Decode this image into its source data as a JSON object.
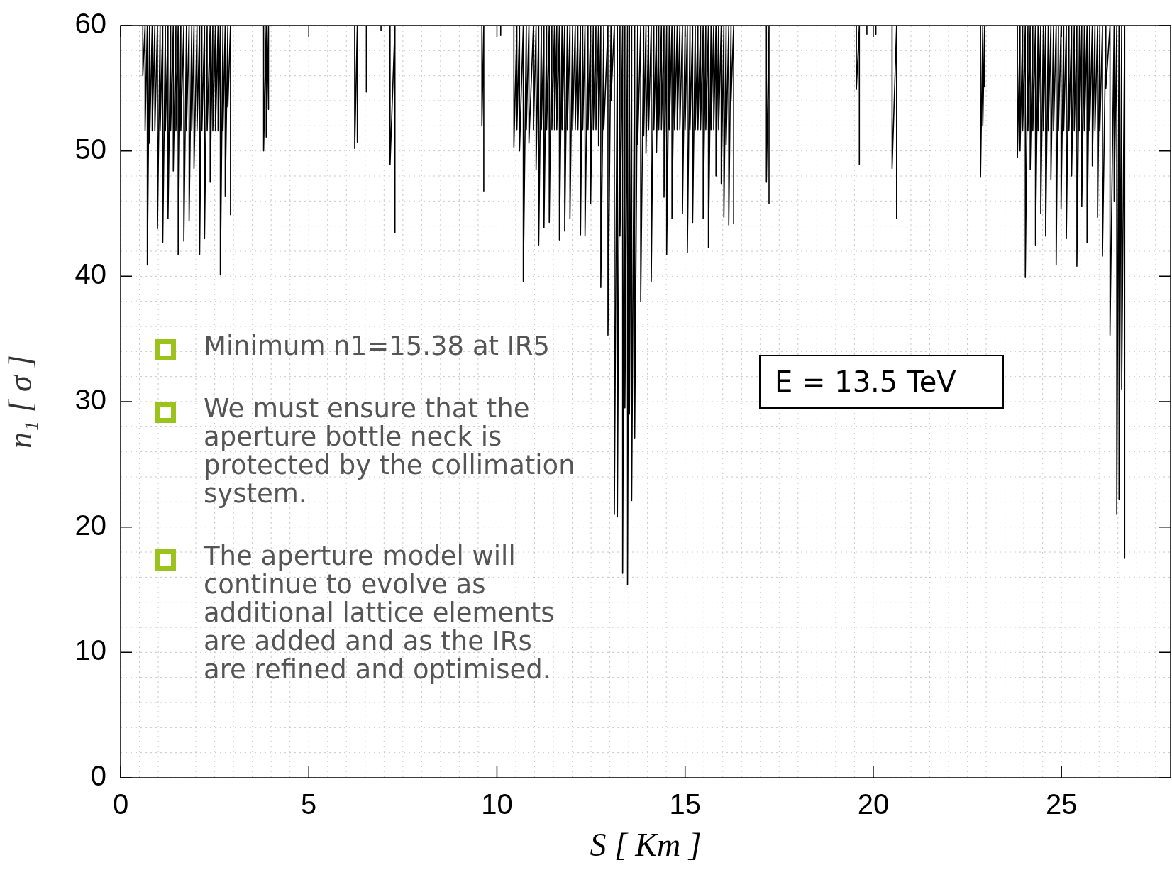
{
  "chart_data": {
    "type": "line",
    "xlabel": "S [ Km ]",
    "ylabel": "n₁ [ σ ]",
    "xlim": [
      0,
      27.9
    ],
    "xticks": [
      0,
      5,
      10,
      15,
      20,
      25
    ],
    "ylim": [
      0,
      60
    ],
    "yticks": [
      0,
      10,
      20,
      30,
      40,
      50,
      60
    ],
    "grid": true,
    "annotations": [
      "Minimum n1=15.38 at IR5",
      "We must ensure that the aperture bottle neck is protected by the collimation system.",
      "The aperture model will continue to evolve as additional lattice elements are added and as the IRs are refined and optimised.",
      "E = 13.5 TeV"
    ],
    "series": [
      {
        "color": "#000000",
        "x": [
          0.59,
          0.59,
          0.65,
          0.65,
          0.71,
          0.71,
          0.77,
          0.77,
          0.84,
          0.84,
          0.91,
          0.91,
          0.98,
          0.98,
          1.05,
          1.05,
          1.12,
          1.12,
          1.19,
          1.19,
          1.26,
          1.26,
          1.33,
          1.33,
          1.4,
          1.4,
          1.47,
          1.47,
          1.53,
          1.53,
          1.6,
          1.6,
          1.68,
          1.68,
          1.75,
          1.75,
          1.82,
          1.82,
          1.89,
          1.89,
          1.95,
          1.95,
          2.03,
          2.03,
          2.1,
          2.1,
          2.16,
          2.16,
          2.23,
          2.23,
          2.3,
          2.3,
          2.38,
          2.38,
          2.45,
          2.45,
          2.52,
          2.52,
          2.59,
          2.59,
          2.65,
          2.65,
          2.72,
          2.72,
          2.78,
          2.78,
          2.85,
          2.85,
          2.92,
          2.92,
          2.92,
          3.8,
          3.8,
          3.87,
          3.87,
          3.93,
          3.93,
          3.93,
          6.22,
          6.22,
          6.29,
          6.29,
          6.29,
          6.53,
          6.53,
          6.53,
          6.92,
          6.92,
          6.92,
          7.16,
          7.16,
          7.29,
          7.29,
          7.29,
          9.6,
          9.6,
          9.65,
          9.65,
          9.65,
          10.1,
          10.1,
          10.1,
          10.45,
          10.45,
          10.53,
          10.53,
          10.6,
          10.6,
          10.7,
          10.7,
          10.78,
          10.78,
          10.85,
          10.85,
          10.97,
          10.97,
          11.04,
          11.04,
          11.11,
          11.11,
          11.18,
          11.18,
          11.25,
          11.25,
          11.32,
          11.32,
          11.39,
          11.39,
          11.46,
          11.46,
          11.53,
          11.53,
          11.59,
          11.59,
          11.66,
          11.66,
          11.73,
          11.73,
          11.8,
          11.8,
          11.87,
          11.87,
          11.94,
          11.94,
          12.01,
          12.01,
          12.08,
          12.08,
          12.15,
          12.15,
          12.22,
          12.22,
          12.28,
          12.28,
          12.34,
          12.34,
          12.42,
          12.42,
          12.49,
          12.49,
          12.56,
          12.56,
          12.63,
          12.63,
          12.7,
          12.7,
          12.76,
          12.76,
          12.84,
          12.84,
          12.95,
          12.95,
          13.03,
          13.03,
          13.12,
          13.12,
          13.2,
          13.2,
          13.27,
          13.27,
          13.34,
          13.34,
          13.4,
          13.4,
          13.47,
          13.47,
          13.52,
          13.52,
          13.58,
          13.58,
          13.66,
          13.66,
          13.74,
          13.74,
          13.82,
          13.82,
          13.9,
          13.9,
          13.96,
          13.96,
          14.03,
          14.03,
          14.1,
          14.1,
          14.17,
          14.17,
          14.24,
          14.24,
          14.3,
          14.3,
          14.37,
          14.37,
          14.44,
          14.44,
          14.51,
          14.51,
          14.58,
          14.58,
          14.65,
          14.65,
          14.72,
          14.72,
          14.79,
          14.79,
          14.86,
          14.86,
          14.93,
          14.93,
          15,
          15,
          15.06,
          15.06,
          15.13,
          15.13,
          15.2,
          15.2,
          15.27,
          15.27,
          15.34,
          15.34,
          15.41,
          15.41,
          15.48,
          15.48,
          15.55,
          15.55,
          15.62,
          15.62,
          15.69,
          15.69,
          15.76,
          15.76,
          15.82,
          15.82,
          15.89,
          15.89,
          15.96,
          15.96,
          16.03,
          16.03,
          16.09,
          16.09,
          16.16,
          16.16,
          16.22,
          16.22,
          16.29,
          16.29,
          16.29,
          17.16,
          17.16,
          17.23,
          17.23,
          17.23,
          19.55,
          19.55,
          19.63,
          19.63,
          19.63,
          19.83,
          19.83,
          19.83,
          20.07,
          20.07,
          20.07,
          20.5,
          20.5,
          20.62,
          20.62,
          20.62,
          22.85,
          22.85,
          22.91,
          22.91,
          22.96,
          22.96,
          22.96,
          23.83,
          23.83,
          23.9,
          23.9,
          23.97,
          23.97,
          24.04,
          24.04,
          24.11,
          24.11,
          24.17,
          24.17,
          24.24,
          24.24,
          24.31,
          24.31,
          24.38,
          24.38,
          24.45,
          24.45,
          24.52,
          24.52,
          24.58,
          24.58,
          24.65,
          24.65,
          24.72,
          24.72,
          24.79,
          24.79,
          24.86,
          24.86,
          24.92,
          24.92,
          24.99,
          24.99,
          25.06,
          25.06,
          25.13,
          25.13,
          25.2,
          25.2,
          25.27,
          25.27,
          25.34,
          25.34,
          25.41,
          25.41,
          25.48,
          25.48,
          25.54,
          25.54,
          25.61,
          25.61,
          25.68,
          25.68,
          25.75,
          25.75,
          25.82,
          25.82,
          25.89,
          25.89,
          25.96,
          25.96,
          26.02,
          26.02,
          26.09,
          26.09,
          26.18,
          26.18,
          26.29,
          26.29,
          26.4,
          26.4,
          26.47,
          26.47,
          26.53,
          26.53,
          26.6,
          26.6,
          26.68,
          26.68,
          26.68
        ],
        "values": [
          60,
          56,
          60,
          51.6,
          60,
          40.9,
          60,
          50.6,
          60,
          51.6,
          60,
          51.6,
          60,
          43.8,
          60,
          51.6,
          60,
          42.7,
          60,
          51.6,
          60,
          44.6,
          60,
          51.6,
          60,
          48.4,
          60,
          51.6,
          60,
          41.7,
          60,
          51.6,
          60,
          42.8,
          60,
          51.6,
          60,
          44.4,
          60,
          51.6,
          60,
          48.6,
          60,
          51.6,
          60,
          41.7,
          60,
          51.6,
          60,
          43,
          60,
          51.6,
          60,
          47.5,
          60,
          51.6,
          60,
          51.6,
          60,
          51.6,
          60,
          40.1,
          60,
          51.6,
          60,
          46.4,
          60,
          53.5,
          60,
          44.9,
          60,
          60,
          50,
          60,
          51.1,
          60,
          53.3,
          60,
          60,
          50.2,
          60,
          50.7,
          60,
          60,
          54.7,
          60,
          60,
          59.6,
          60,
          60,
          48.9,
          60,
          43.5,
          60,
          60,
          52,
          60,
          46.8,
          60,
          60,
          59.2,
          60,
          60,
          50.3,
          60,
          51.7,
          60,
          50,
          60,
          39.6,
          60,
          51.7,
          60,
          50.6,
          60,
          51.7,
          60,
          48.5,
          60,
          42.5,
          60,
          51.7,
          60,
          43.9,
          60,
          51.7,
          60,
          44.3,
          60,
          51.7,
          60,
          51.7,
          60,
          51.7,
          60,
          42.9,
          60,
          51.7,
          60,
          43.6,
          60,
          51.7,
          60,
          44.6,
          60,
          51.7,
          60,
          51.7,
          60,
          51.7,
          60,
          43.3,
          60,
          51.7,
          60,
          43.2,
          60,
          51.7,
          60,
          45.8,
          60,
          51.7,
          60,
          51.7,
          60,
          50.4,
          60,
          39.1,
          60,
          51.7,
          60,
          35.3,
          60,
          54,
          60,
          21,
          60,
          20.8,
          60,
          43.2,
          60,
          16.3,
          60,
          29.5,
          60,
          15.38,
          60,
          29,
          60,
          22.1,
          60,
          27.1,
          60,
          50.5,
          60,
          38,
          60,
          51.2,
          60,
          49.8,
          60,
          51.7,
          60,
          39.6,
          60,
          51.7,
          60,
          49.9,
          60,
          51.7,
          60,
          51.7,
          60,
          46.3,
          60,
          41.7,
          60,
          51.7,
          60,
          44.6,
          60,
          51.7,
          60,
          51.7,
          60,
          51.7,
          60,
          45,
          60,
          51.7,
          60,
          41.9,
          60,
          51.7,
          60,
          44.3,
          60,
          51.7,
          60,
          51.7,
          60,
          51.7,
          60,
          44.6,
          60,
          51.7,
          60,
          42.3,
          60,
          51.7,
          60,
          51.7,
          60,
          48,
          60,
          51.7,
          60,
          47.4,
          60,
          44.7,
          60,
          50.5,
          60,
          44.1,
          60,
          54,
          60,
          44.2,
          60,
          60,
          47.5,
          60,
          45.8,
          60,
          60,
          54.9,
          60,
          48.9,
          60,
          60,
          59.3,
          60,
          60,
          59.3,
          60,
          60,
          48.6,
          60,
          44.6,
          60,
          60,
          47.9,
          60,
          52,
          60,
          55.1,
          60,
          60,
          49.5,
          60,
          50,
          60,
          51.6,
          60,
          39.9,
          60,
          51.6,
          60,
          48.5,
          60,
          51.6,
          60,
          42.5,
          60,
          51.6,
          60,
          45,
          60,
          51.6,
          60,
          43.2,
          60,
          51.6,
          60,
          47.7,
          60,
          51.6,
          60,
          40.9,
          60,
          51.6,
          60,
          45.4,
          60,
          51.6,
          60,
          43,
          60,
          51.6,
          60,
          48,
          60,
          51.6,
          60,
          40.8,
          60,
          51.6,
          60,
          45.6,
          60,
          51.6,
          60,
          42.7,
          60,
          51.6,
          60,
          48.8,
          60,
          51.6,
          60,
          44.7,
          60,
          51.6,
          60,
          41.6,
          60,
          55,
          60,
          35.3,
          60,
          46,
          60,
          21,
          60,
          22.2,
          60,
          31,
          60,
          17.5,
          60
        ]
      }
    ]
  }
}
